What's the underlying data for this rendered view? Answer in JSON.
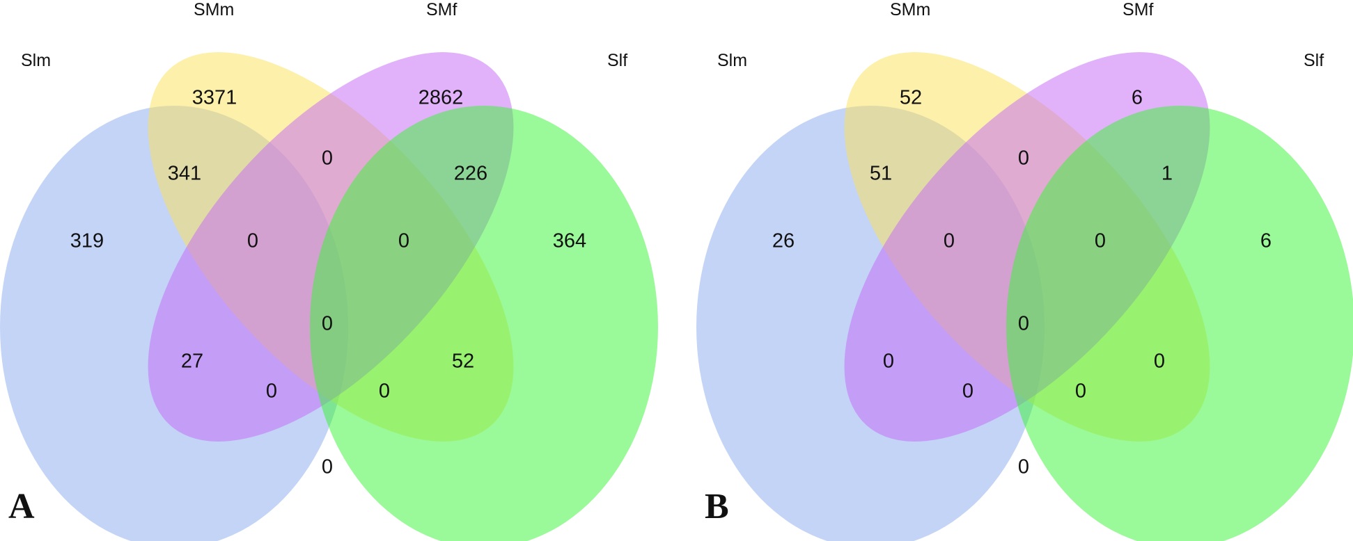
{
  "panels": [
    {
      "letter": "A",
      "sets": [
        {
          "key": "slm",
          "label": "Slm",
          "color": "#8cacee"
        },
        {
          "key": "smm",
          "label": "SMm",
          "color": "#fce25c"
        },
        {
          "key": "smf",
          "label": "SMf",
          "color": "#c66cf5"
        },
        {
          "key": "slf",
          "label": "Slf",
          "color": "#3ef43a"
        }
      ],
      "counts": {
        "slm_only": "319",
        "smm_only": "3371",
        "smf_only": "2862",
        "slf_only": "364",
        "slm_smm": "341",
        "smm_smf": "0",
        "smf_slf": "226",
        "slm_smf": "27",
        "smm_slf": "52",
        "slm_slf": "0",
        "slm_smm_smf": "0",
        "smm_smf_slf": "0",
        "slm_smf_slf": "0",
        "slm_smm_slf": "0",
        "all": "0"
      }
    },
    {
      "letter": "B",
      "sets": [
        {
          "key": "slm",
          "label": "Slm",
          "color": "#8cacee"
        },
        {
          "key": "smm",
          "label": "SMm",
          "color": "#fce25c"
        },
        {
          "key": "smf",
          "label": "SMf",
          "color": "#c66cf5"
        },
        {
          "key": "slf",
          "label": "Slf",
          "color": "#3ef43a"
        }
      ],
      "counts": {
        "slm_only": "26",
        "smm_only": "52",
        "smf_only": "6",
        "slf_only": "6",
        "slm_smm": "51",
        "smm_smf": "0",
        "smf_slf": "1",
        "slm_smf": "0",
        "smm_slf": "0",
        "slm_slf": "0",
        "slm_smm_smf": "0",
        "smm_smf_slf": "0",
        "slm_smf_slf": "0",
        "slm_smm_slf": "0",
        "all": "0"
      }
    }
  ]
}
